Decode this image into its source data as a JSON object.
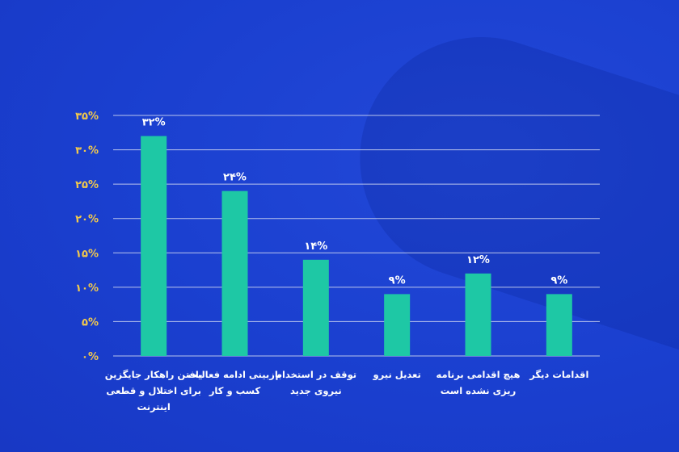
{
  "colors": {
    "background": "#1a3fcf",
    "bar": "#1ec8a5",
    "tick_label": "#f2c94c",
    "gridline": "#d6dcf2",
    "text": "#ffffff"
  },
  "chart_data": {
    "type": "bar",
    "title": "",
    "xlabel": "",
    "ylabel": "",
    "ylim": [
      0,
      35
    ],
    "grid": true,
    "y_ticks": [
      0,
      5,
      10,
      15,
      20,
      25,
      30,
      35
    ],
    "y_tick_labels": [
      "۰%",
      "۵%",
      "۱۰%",
      "۱۵%",
      "۲۰%",
      "۲۵%",
      "۳۰%",
      "۳۵%"
    ],
    "categories": [
      [
        "یافتن راهکار جایگزین",
        "برای اختلال و قطعی",
        "اینترنت"
      ],
      [
        "بازبینی ادامه فعالیت",
        "کسب و کار"
      ],
      [
        "توقف در استخدام",
        "نیروی جدید"
      ],
      [
        "تعدیل نیرو"
      ],
      [
        "هیچ اقدامی برنامه",
        "ریزی نشده است"
      ],
      [
        "اقدامات دیگر"
      ]
    ],
    "values": [
      32,
      24,
      14,
      9,
      12,
      9
    ],
    "data_labels": [
      "۳۲%",
      "۲۴%",
      "۱۴%",
      "۹%",
      "۱۲%",
      "۹%"
    ]
  }
}
